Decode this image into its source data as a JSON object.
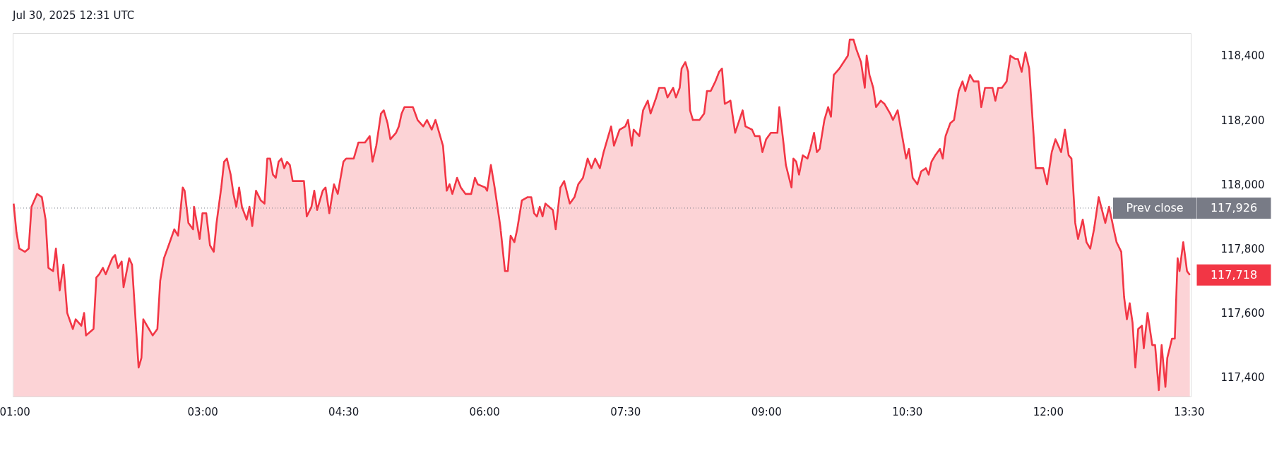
{
  "chart_data": {
    "type": "area",
    "annotations": [
      "Jul 30, 2025 12:31 UTC",
      "117,926",
      "117,718"
    ],
    "x": [
      0.99,
      1.02,
      1.05,
      1.11,
      1.15,
      1.18,
      1.24,
      1.29,
      1.33,
      1.36,
      1.41,
      1.44,
      1.48,
      1.52,
      1.56,
      1.62,
      1.65,
      1.71,
      1.74,
      1.76,
      1.84,
      1.87,
      1.9,
      1.94,
      1.97,
      2.04,
      2.07,
      2.1,
      2.14,
      2.16,
      2.22,
      2.25,
      2.32,
      2.35,
      2.37,
      2.41,
      2.47,
      2.52,
      2.55,
      2.59,
      2.64,
      2.7,
      2.74,
      2.79,
      2.81,
      2.85,
      2.9,
      2.91,
      2.97,
      3.0,
      3.04,
      3.08,
      3.12,
      3.15,
      3.2,
      3.23,
      3.26,
      3.3,
      3.33,
      3.36,
      3.39,
      3.42,
      3.47,
      3.5,
      3.53,
      3.57,
      3.62,
      3.66,
      3.69,
      3.72,
      3.75,
      3.78,
      3.81,
      3.84,
      3.87,
      3.9,
      3.93,
      3.96,
      4.08,
      4.11,
      4.16,
      4.19,
      4.22,
      4.28,
      4.31,
      4.35,
      4.4,
      4.44,
      4.5,
      4.53,
      4.61,
      4.66,
      4.73,
      4.78,
      4.81,
      4.85,
      4.9,
      4.93,
      4.97,
      5.0,
      5.06,
      5.09,
      5.12,
      5.15,
      5.24,
      5.29,
      5.35,
      5.39,
      5.44,
      5.48,
      5.53,
      5.56,
      5.6,
      5.63,
      5.66,
      5.71,
      5.75,
      5.8,
      5.86,
      5.9,
      5.93,
      6.01,
      6.03,
      6.07,
      6.11,
      6.17,
      6.22,
      6.25,
      6.28,
      6.32,
      6.35,
      6.4,
      6.46,
      6.5,
      6.53,
      6.56,
      6.59,
      6.62,
      6.65,
      6.73,
      6.76,
      6.81,
      6.85,
      6.91,
      6.96,
      7.0,
      7.05,
      7.1,
      7.14,
      7.18,
      7.23,
      7.27,
      7.35,
      7.38,
      7.44,
      7.5,
      7.53,
      7.57,
      7.59,
      7.65,
      7.69,
      7.74,
      7.77,
      7.83,
      7.86,
      7.92,
      7.95,
      8.01,
      8.04,
      8.08,
      8.1,
      8.14,
      8.17,
      8.19,
      8.22,
      8.29,
      8.34,
      8.37,
      8.41,
      8.46,
      8.5,
      8.53,
      8.56,
      8.62,
      8.67,
      8.75,
      8.78,
      8.85,
      8.88,
      8.93,
      8.96,
      9.0,
      9.05,
      9.12,
      9.14,
      9.18,
      9.21,
      9.27,
      9.29,
      9.32,
      9.35,
      9.39,
      9.44,
      9.47,
      9.51,
      9.54,
      9.57,
      9.62,
      9.66,
      9.69,
      9.72,
      9.78,
      9.87,
      9.89,
      9.93,
      9.96,
      10.01,
      10.05,
      10.07,
      10.1,
      10.14,
      10.17,
      10.22,
      10.26,
      10.32,
      10.35,
      10.4,
      10.43,
      10.49,
      10.52,
      10.56,
      10.61,
      10.65,
      10.7,
      10.73,
      10.76,
      10.8,
      10.85,
      10.88,
      10.91,
      10.96,
      11.0,
      11.05,
      11.09,
      11.12,
      11.17,
      11.21,
      11.26,
      11.29,
      11.33,
      11.41,
      11.44,
      11.47,
      11.51,
      11.56,
      11.6,
      11.65,
      11.68,
      11.72,
      11.76,
      11.8,
      11.87,
      11.95,
      11.99,
      12.04,
      12.08,
      12.14,
      12.18,
      12.22,
      12.25,
      12.29,
      12.32,
      12.37,
      12.41,
      12.45,
      12.49,
      12.54,
      12.61,
      12.65,
      12.7,
      12.73,
      12.78,
      12.81,
      12.84,
      12.87,
      12.9,
      12.93,
      12.96,
      13.0,
      13.02,
      13.06,
      13.11,
      13.14,
      13.18,
      13.21,
      13.25,
      13.27,
      13.32,
      13.35,
      13.38,
      13.4,
      13.44,
      13.48,
      13.51
    ],
    "series": [
      {
        "color": "#f23645",
        "values": [
          117940,
          117850,
          117800,
          117790,
          117800,
          117930,
          117970,
          117960,
          117890,
          117740,
          117730,
          117800,
          117670,
          117750,
          117600,
          117550,
          117580,
          117560,
          117600,
          117530,
          117550,
          117710,
          117720,
          117740,
          117720,
          117770,
          117780,
          117740,
          117760,
          117680,
          117770,
          117750,
          117430,
          117460,
          117580,
          117560,
          117530,
          117550,
          117700,
          117770,
          117810,
          117860,
          117840,
          117990,
          117980,
          117880,
          117860,
          117930,
          117830,
          117910,
          117910,
          117810,
          117790,
          117880,
          117990,
          118070,
          118080,
          118030,
          117970,
          117930,
          117990,
          117930,
          117890,
          117930,
          117870,
          117980,
          117950,
          117940,
          118080,
          118080,
          118030,
          118020,
          118070,
          118080,
          118050,
          118070,
          118060,
          118010,
          118010,
          117900,
          117930,
          117980,
          117920,
          117980,
          117990,
          117910,
          118000,
          117970,
          118070,
          118080,
          118080,
          118130,
          118130,
          118150,
          118070,
          118120,
          118220,
          118230,
          118190,
          118140,
          118160,
          118180,
          118220,
          118240,
          118240,
          118200,
          118180,
          118200,
          118170,
          118200,
          118150,
          118120,
          117980,
          118000,
          117970,
          118020,
          117990,
          117970,
          117970,
          118020,
          118000,
          117990,
          117980,
          118060,
          117990,
          117870,
          117730,
          117730,
          117840,
          117820,
          117860,
          117950,
          117960,
          117960,
          117910,
          117900,
          117930,
          117900,
          117940,
          117920,
          117860,
          117990,
          118010,
          117940,
          117960,
          118000,
          118020,
          118080,
          118050,
          118080,
          118050,
          118100,
          118180,
          118120,
          118170,
          118180,
          118200,
          118120,
          118170,
          118150,
          118230,
          118260,
          118220,
          118270,
          118300,
          118300,
          118270,
          118300,
          118270,
          118300,
          118360,
          118380,
          118350,
          118230,
          118200,
          118200,
          118220,
          118290,
          118290,
          118320,
          118350,
          118360,
          118250,
          118260,
          118160,
          118230,
          118180,
          118170,
          118150,
          118150,
          118100,
          118140,
          118160,
          118160,
          118240,
          118140,
          118060,
          117990,
          118080,
          118070,
          118030,
          118090,
          118080,
          118110,
          118160,
          118100,
          118110,
          118200,
          118240,
          118210,
          118340,
          118360,
          118400,
          118450,
          118450,
          118420,
          118380,
          118300,
          118400,
          118340,
          118300,
          118240,
          118260,
          118250,
          118220,
          118200,
          118230,
          118180,
          118080,
          118110,
          118020,
          118000,
          118040,
          118050,
          118030,
          118070,
          118090,
          118110,
          118080,
          118150,
          118190,
          118200,
          118290,
          118320,
          118290,
          118340,
          118320,
          118320,
          118240,
          118300,
          118300,
          118260,
          118300,
          118300,
          118320,
          118400,
          118390,
          118390,
          118350,
          118410,
          118360,
          118050,
          118050,
          118000,
          118100,
          118140,
          118100,
          118170,
          118090,
          118080,
          117880,
          117830,
          117890,
          117820,
          117800,
          117860,
          117960,
          117880,
          117930,
          117860,
          117820,
          117790,
          117650,
          117580,
          117630,
          117570,
          117430,
          117550,
          117560,
          117490,
          117600,
          117500,
          117500,
          117360,
          117500,
          117370,
          117460,
          117520,
          117520,
          117770,
          117730,
          117820,
          117730,
          117718
        ]
      }
    ],
    "xlim": [
      0.98,
      13.52
    ],
    "xticks": [
      {
        "value": 1,
        "label": "01:00"
      },
      {
        "value": 3,
        "label": "03:00"
      },
      {
        "value": 4.5,
        "label": "04:30"
      },
      {
        "value": 6,
        "label": "06:00"
      },
      {
        "value": 7.5,
        "label": "07:30"
      },
      {
        "value": 9,
        "label": "09:00"
      },
      {
        "value": 10.5,
        "label": "10:30"
      },
      {
        "value": 12,
        "label": "12:00"
      },
      {
        "value": 13.5,
        "label": "13:30"
      }
    ],
    "ylim": [
      117340,
      118470
    ],
    "yticks": [
      {
        "value": 117400,
        "label": "117,400"
      },
      {
        "value": 117600,
        "label": "117,600"
      },
      {
        "value": 117800,
        "label": "117,800"
      },
      {
        "value": 118000,
        "label": "118,000"
      },
      {
        "value": 118200,
        "label": "118,200"
      },
      {
        "value": 118400,
        "label": "118,400"
      }
    ],
    "ref_lines": [
      {
        "axis": "y",
        "value": 117926,
        "label": "Prev close",
        "color": "#787b86",
        "line_style": "dotted"
      }
    ],
    "grid": false,
    "line_style": "solid"
  }
}
